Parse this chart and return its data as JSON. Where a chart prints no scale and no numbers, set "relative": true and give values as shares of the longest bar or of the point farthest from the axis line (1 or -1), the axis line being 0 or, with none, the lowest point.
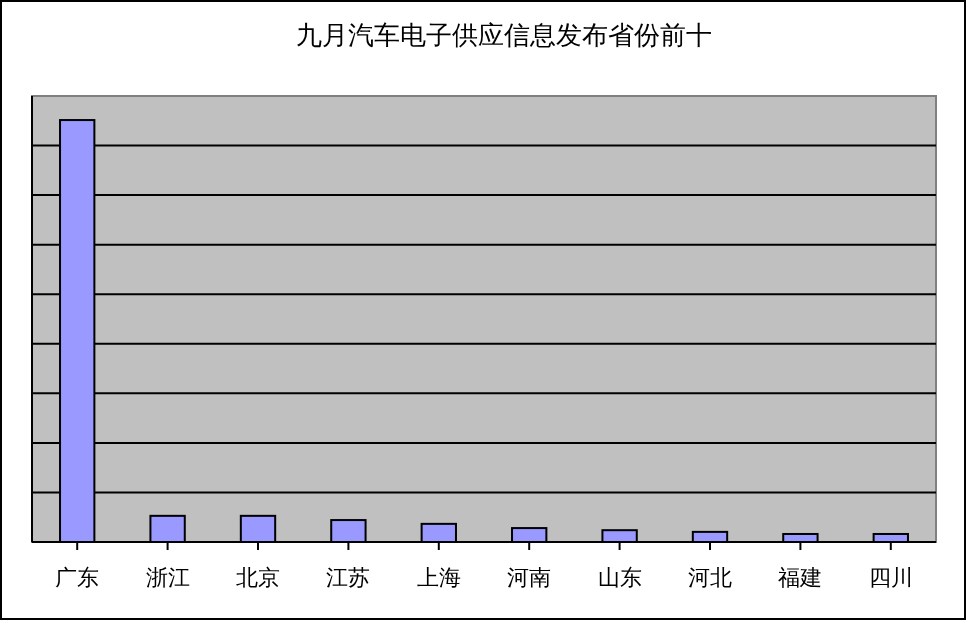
{
  "chart_data": {
    "type": "bar",
    "title": "九月汽车电子供应信息发布省份前十",
    "categories": [
      "广东",
      "浙江",
      "北京",
      "江苏",
      "上海",
      "河南",
      "山东",
      "河北",
      "福建",
      "四川"
    ],
    "values": [
      1,
      0.062,
      0.062,
      0.052,
      0.043,
      0.033,
      0.028,
      0.024,
      0.019,
      0.019
    ],
    "color": "#9999ff",
    "relative": true,
    "grid": "y"
  }
}
